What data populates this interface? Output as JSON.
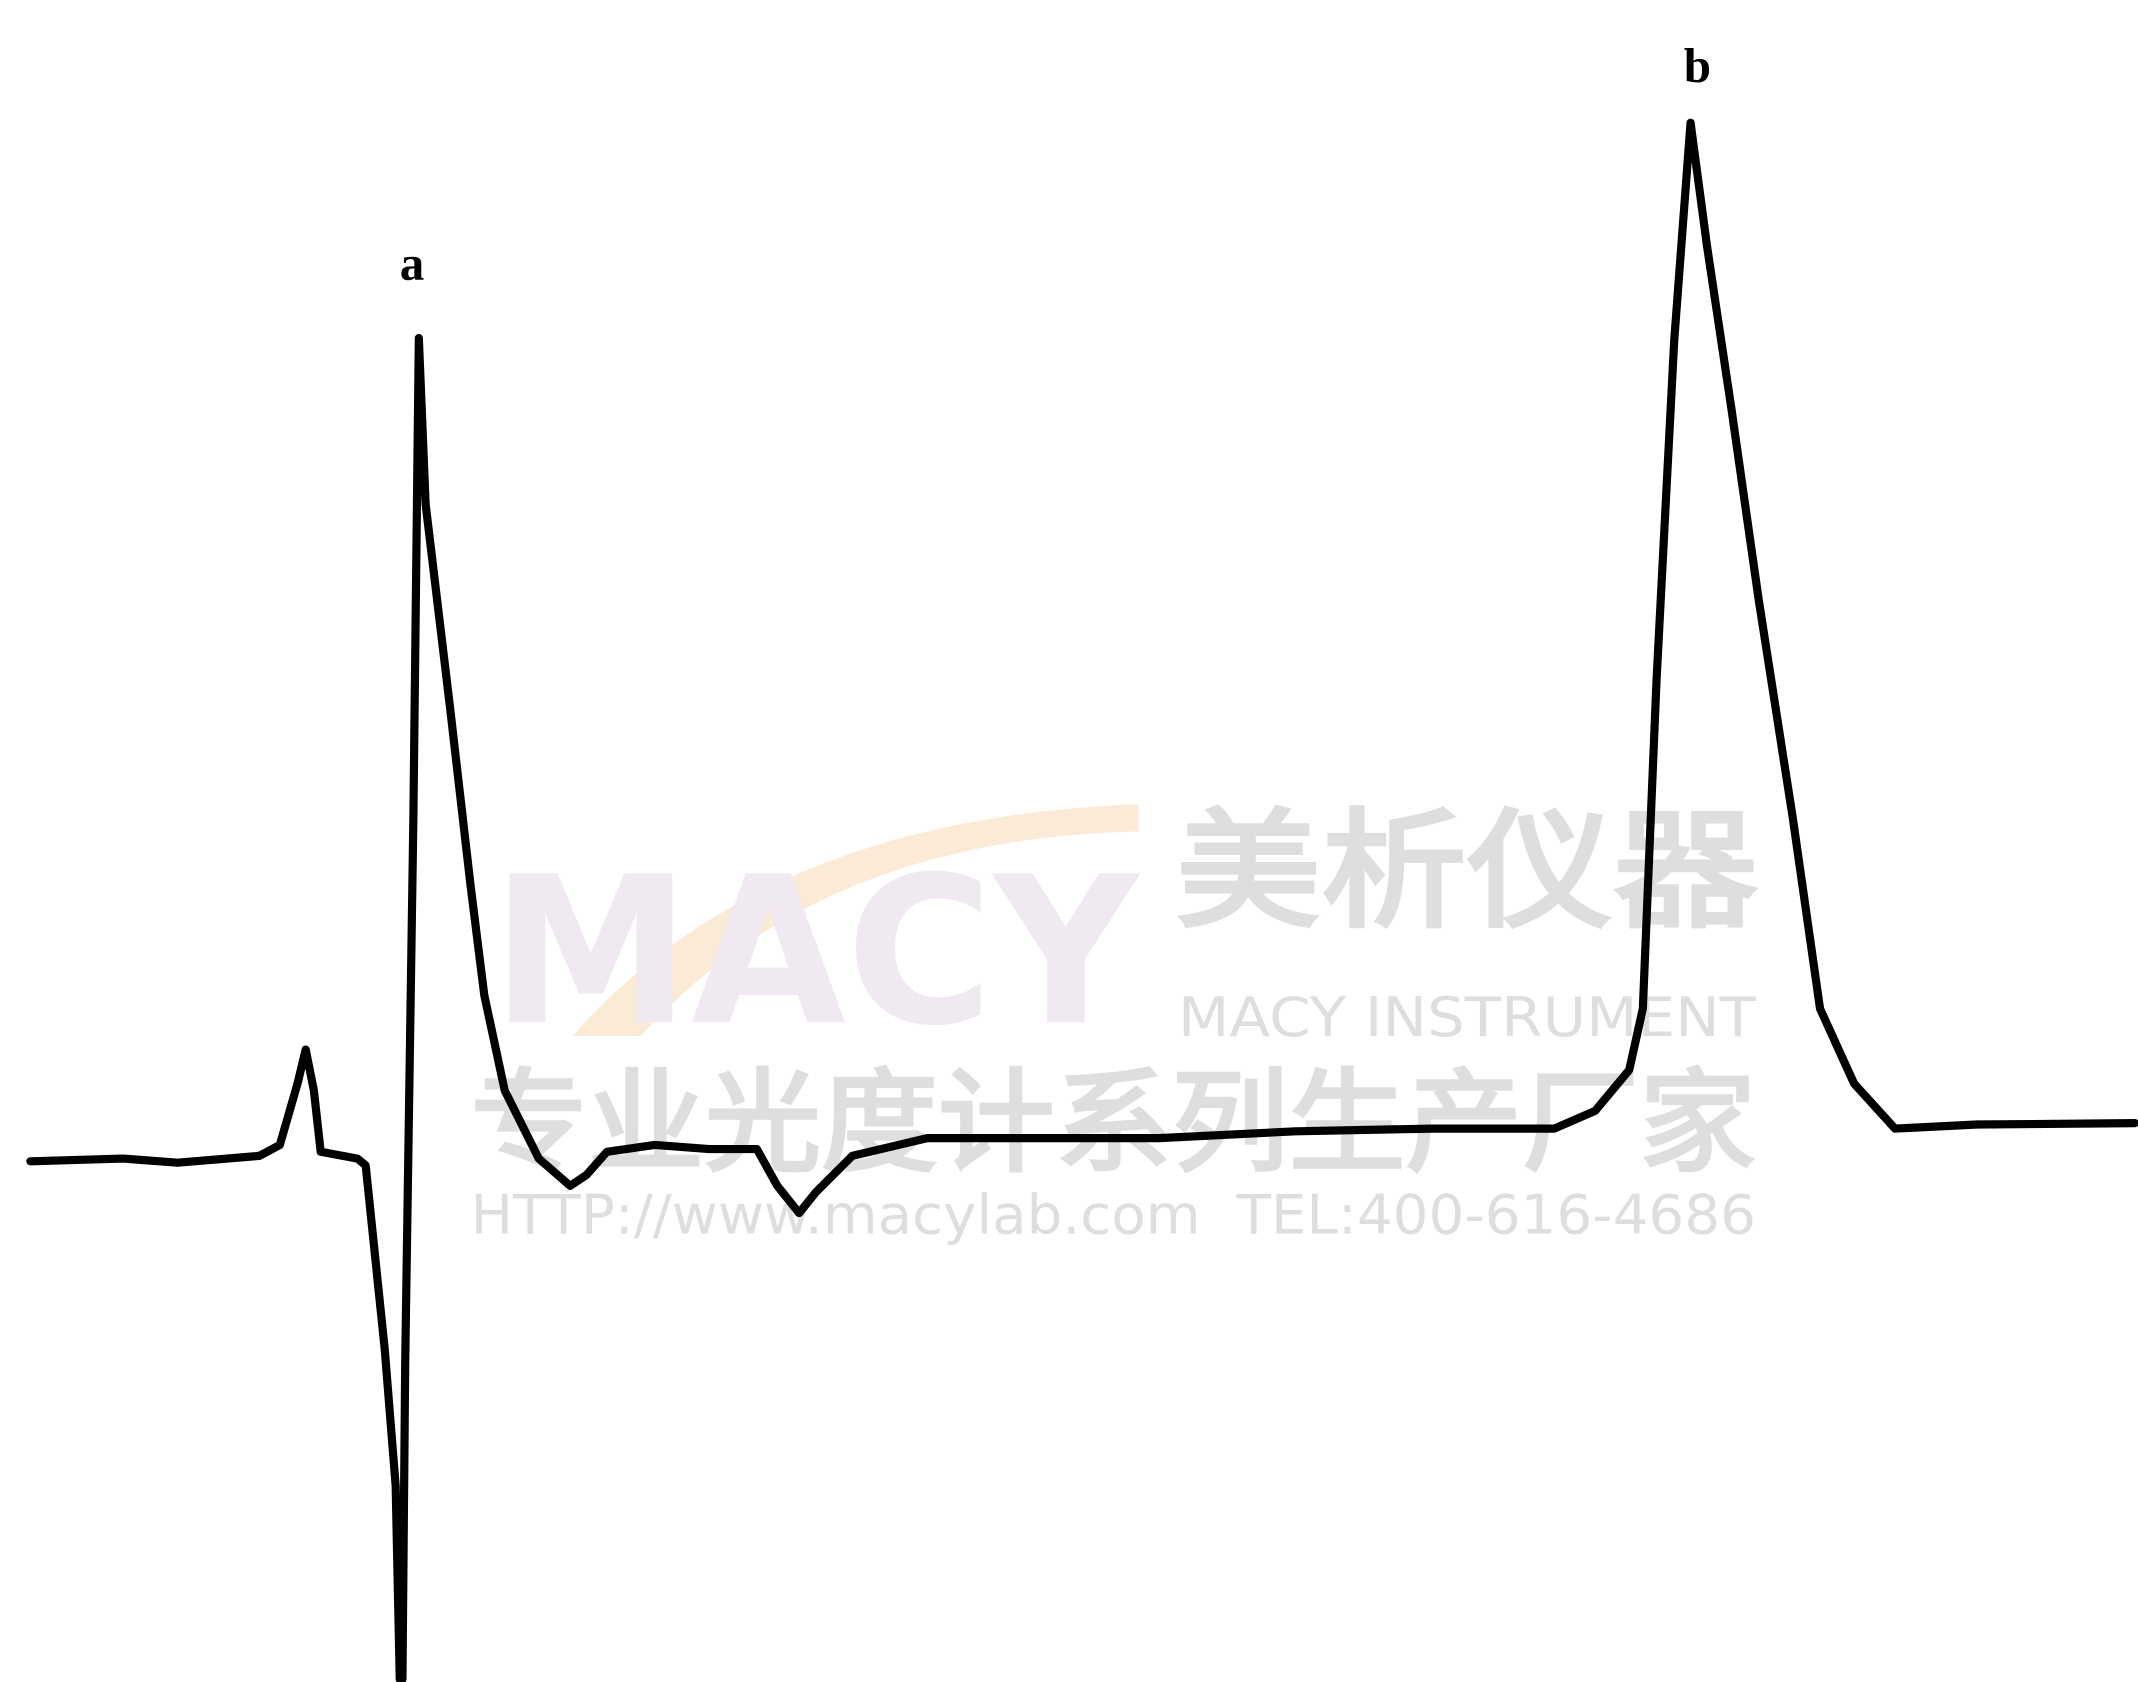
{
  "peaks": {
    "a": "a",
    "b": "b"
  },
  "watermark": {
    "logo": "MACY",
    "brand_cn": "美析仪器",
    "brand_en": "MACY INSTRUMENT",
    "slogan": "专业光度计系列生产厂家",
    "contact": "HTTP://www.macylab.com  TEL:400-616-4686"
  }
}
